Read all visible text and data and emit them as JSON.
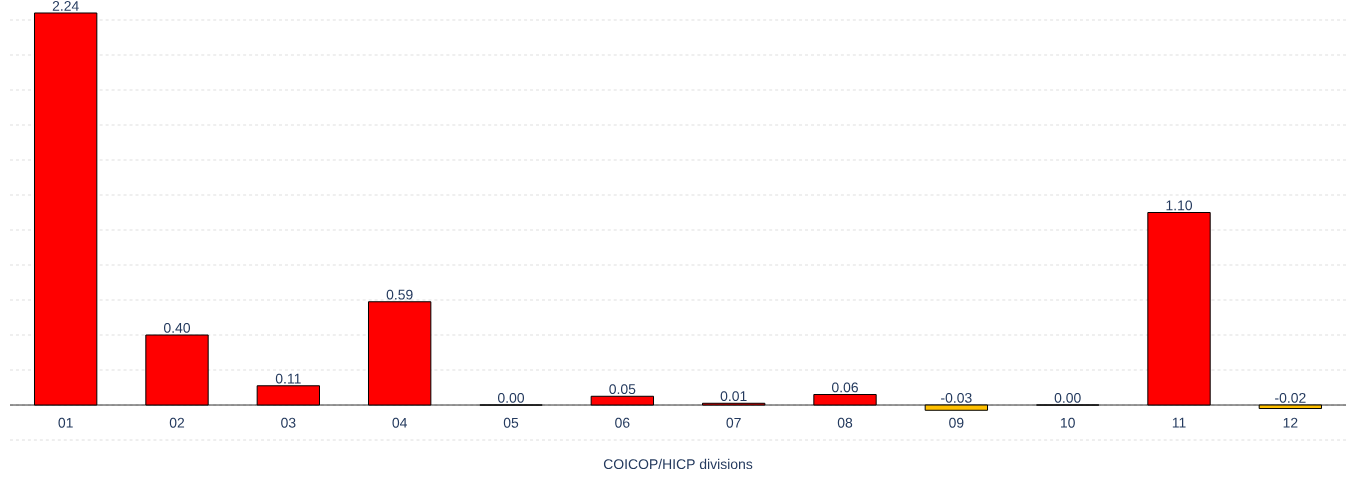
{
  "chart_data": {
    "type": "bar",
    "xlabel": "COICOP/HICP divisions",
    "categories": [
      "01",
      "02",
      "03",
      "04",
      "05",
      "06",
      "07",
      "08",
      "09",
      "10",
      "11",
      "12"
    ],
    "values": [
      2.24,
      0.4,
      0.11,
      0.59,
      0.0,
      0.05,
      0.01,
      0.06,
      -0.03,
      0.0,
      1.1,
      -0.02
    ],
    "value_labels": [
      "2.24",
      "0.40",
      "0.11",
      "0.59",
      "0.00",
      "0.05",
      "0.01",
      "0.06",
      "-0.03",
      "0.00",
      "1.10",
      "-0.02"
    ],
    "colors": [
      "#ff0000",
      "#ff0000",
      "#ff0000",
      "#ff0000",
      "#ff0000",
      "#ff0000",
      "#ff0000",
      "#ff0000",
      "#ffc000",
      "#ff0000",
      "#ff0000",
      "#ffc000"
    ],
    "grid": "y",
    "tick_labels": "x"
  }
}
